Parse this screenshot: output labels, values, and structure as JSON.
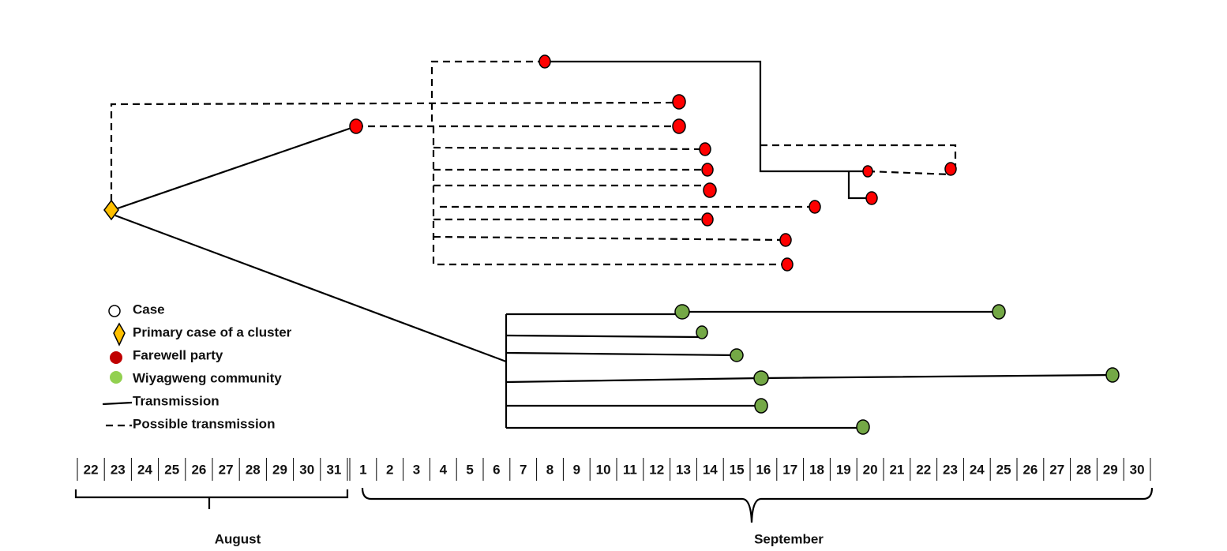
{
  "legend": [
    "Case",
    "Primary case of a cluster",
    "Farewell party",
    "Wiyagweng community",
    "Transmission",
    "Possible transmission"
  ],
  "timeline": {
    "august": {
      "label": "August",
      "days": [
        "22",
        "23",
        "24",
        "25",
        "26",
        "27",
        "28",
        "29",
        "30",
        "31"
      ]
    },
    "september": {
      "label": "September",
      "days": [
        "1",
        "2",
        "3",
        "4",
        "5",
        "6",
        "7",
        "8",
        "9",
        "10",
        "11",
        "12",
        "13",
        "14",
        "15",
        "16",
        "17",
        "18",
        "19",
        "20",
        "21",
        "22",
        "23",
        "24",
        "25",
        "26",
        "27",
        "28",
        "29",
        "30"
      ]
    }
  }
}
